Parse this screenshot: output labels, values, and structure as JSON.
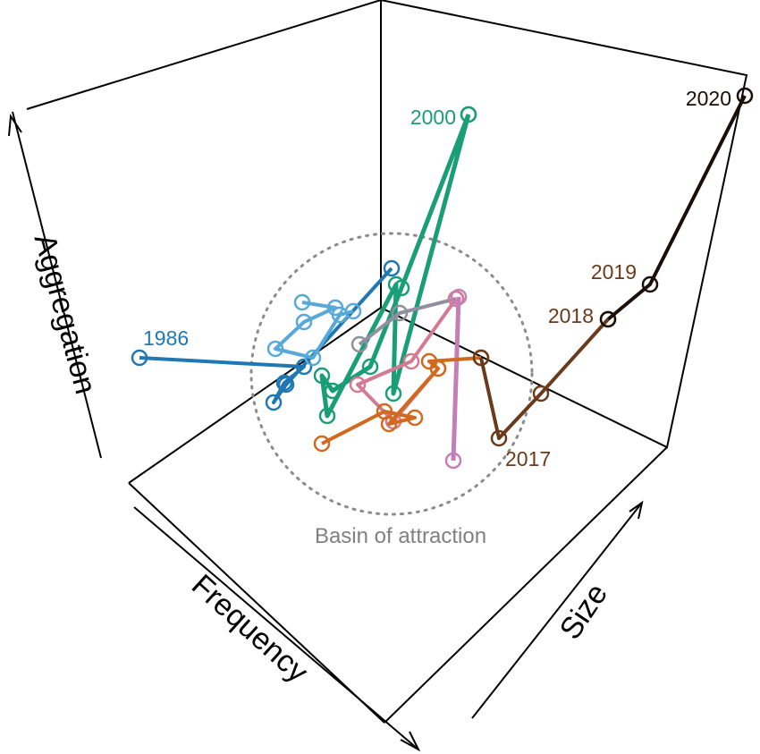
{
  "chart_data": {
    "type": "line",
    "subtype": "3d-trajectory",
    "axes": [
      "Frequency",
      "Size",
      "Aggregation"
    ],
    "annotation": "Basin of attraction",
    "colors": {
      "frame": "#000000",
      "basin": "#8c8c8c",
      "s1986": "#1f77b4",
      "s_lightblue": "#56a9d9",
      "s2000": "#1a9e77",
      "s_grey": "#8f8f9f",
      "s_pink": "#d47a93",
      "s_violet": "#c47fb8",
      "s_orange": "#d2691e",
      "s2017": "#6b3a1a",
      "s2020": "#1a0e08"
    },
    "year_labels": [
      "1986",
      "2000",
      "2017",
      "2018",
      "2019",
      "2020"
    ]
  }
}
